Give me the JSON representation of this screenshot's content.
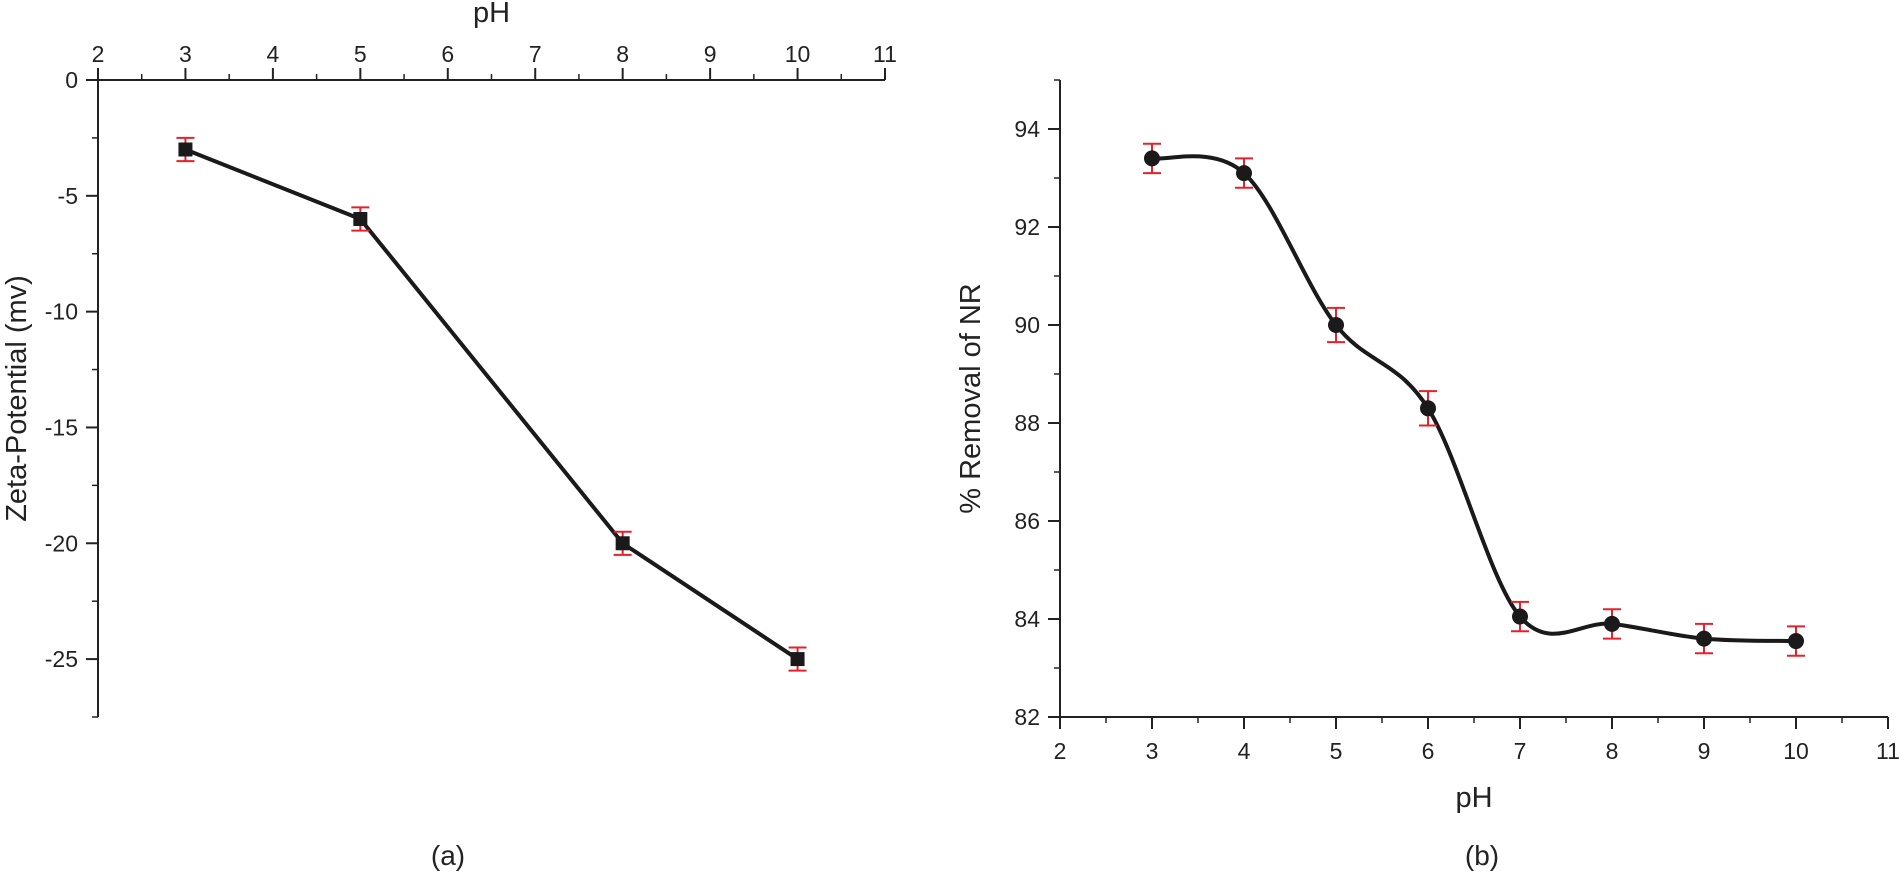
{
  "chart_data": [
    {
      "type": "scatter",
      "caption": "(a)",
      "x_axis_position": "top",
      "xlabel": "pH",
      "ylabel": "Zeta-Potential (mv)",
      "xlim": [
        2,
        11
      ],
      "ylim": [
        -27.5,
        0
      ],
      "xticks": [
        2,
        3,
        4,
        5,
        6,
        7,
        8,
        9,
        10,
        11
      ],
      "yticks": [
        0,
        -5,
        -10,
        -15,
        -20,
        -25
      ],
      "ytick_labels": [
        "0",
        "-5",
        "-10",
        "-15",
        "-20",
        "-25"
      ],
      "series": [
        {
          "marker": "square",
          "line": "straight",
          "x": [
            3,
            5,
            8,
            10
          ],
          "y": [
            -3,
            -6,
            -20,
            -25
          ],
          "error": [
            0.5,
            0.5,
            0.5,
            0.5
          ]
        }
      ],
      "grid": false
    },
    {
      "type": "line",
      "caption": "(b)",
      "x_axis_position": "bottom",
      "xlabel": "pH",
      "ylabel": "% Removal of NR",
      "xlim": [
        2,
        11
      ],
      "ylim": [
        82,
        95
      ],
      "xticks": [
        2,
        3,
        4,
        5,
        6,
        7,
        8,
        9,
        10,
        11
      ],
      "yticks": [
        82,
        84,
        86,
        88,
        90,
        92,
        94
      ],
      "series": [
        {
          "marker": "circle",
          "line": "smooth",
          "x": [
            3,
            4,
            5,
            6,
            7,
            8,
            9,
            10
          ],
          "y": [
            93.4,
            93.1,
            90.0,
            88.3,
            84.05,
            83.9,
            83.6,
            83.55
          ],
          "error": [
            0.3,
            0.3,
            0.35,
            0.35,
            0.3,
            0.3,
            0.3,
            0.3
          ]
        }
      ],
      "grid": false
    }
  ],
  "colors": {
    "series": "#1a1a1a",
    "error_bars": "#e8202a",
    "axes": "#222222"
  }
}
